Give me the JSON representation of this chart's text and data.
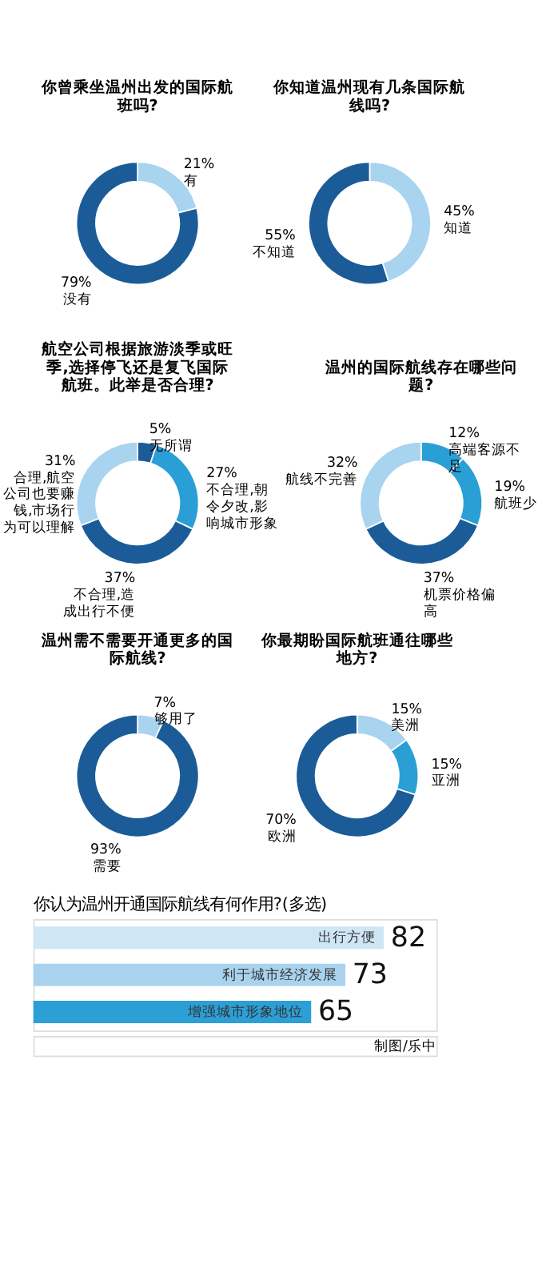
{
  "chart_data": [
    {
      "type": "donut",
      "title": "你曾乘坐温州出发的国际航班吗?",
      "categories": [
        "有",
        "没有"
      ],
      "values": [
        21,
        79
      ],
      "value_labels": [
        "21%",
        "79%"
      ],
      "colors": [
        "#a8d4ef",
        "#1b5c98"
      ]
    },
    {
      "type": "donut",
      "title": "你知道温州现有几条国际航线吗?",
      "categories": [
        "知道",
        "不知道"
      ],
      "values": [
        45,
        55
      ],
      "value_labels": [
        "45%",
        "55%"
      ],
      "colors": [
        "#a8d4ef",
        "#1b5c98"
      ]
    },
    {
      "type": "donut",
      "title": "航空公司根据旅游淡季或旺季,选择停飞还是复飞国际航班。此举是否合理?",
      "categories": [
        "无所谓",
        "不合理,朝令夕改,影响城市形象",
        "不合理,造成出行不便",
        "合理,航空公司也要赚钱,市场行为可以理解"
      ],
      "values": [
        5,
        27,
        37,
        31
      ],
      "value_labels": [
        "5%",
        "27%",
        "37%",
        "31%"
      ],
      "colors": [
        "#1b5c98",
        "#2a9fd6",
        "#1b5c98",
        "#a8d4ef"
      ]
    },
    {
      "type": "donut",
      "title": "温州的国际航线存在哪些问题?",
      "categories": [
        "高端客源不足",
        "航班少",
        "机票价格偏高",
        "航线不完善"
      ],
      "values": [
        12,
        19,
        37,
        32
      ],
      "value_labels": [
        "12%",
        "19%",
        "37%",
        "32%"
      ],
      "colors": [
        "#2a9fd6",
        "#2a9fd6",
        "#1b5c98",
        "#a8d4ef"
      ]
    },
    {
      "type": "donut",
      "title": "温州需不需要开通更多的国际航线?",
      "categories": [
        "够用了",
        "需要"
      ],
      "values": [
        7,
        93
      ],
      "value_labels": [
        "7%",
        "93%"
      ],
      "colors": [
        "#a8d4ef",
        "#1b5c98"
      ]
    },
    {
      "type": "donut",
      "title": "你最期盼国际航班通往哪些地方?",
      "categories": [
        "美洲",
        "亚洲",
        "欧洲"
      ],
      "values": [
        15,
        15,
        70
      ],
      "value_labels": [
        "15%",
        "15%",
        "70%"
      ],
      "colors": [
        "#a8d4ef",
        "#2a9fd6",
        "#1b5c98"
      ]
    },
    {
      "type": "bar",
      "orientation": "horizontal",
      "title": "你认为温州开通国际航线有何作用?(多选)",
      "categories": [
        "出行方便",
        "利于城市经济发展",
        "增强城市形象地位"
      ],
      "values": [
        82,
        73,
        65
      ],
      "colors": [
        "#cfe6f5",
        "#a9d2ee",
        "#2c9fd6"
      ],
      "data_labels": true,
      "annotations": [
        "制图/乐中"
      ]
    }
  ]
}
